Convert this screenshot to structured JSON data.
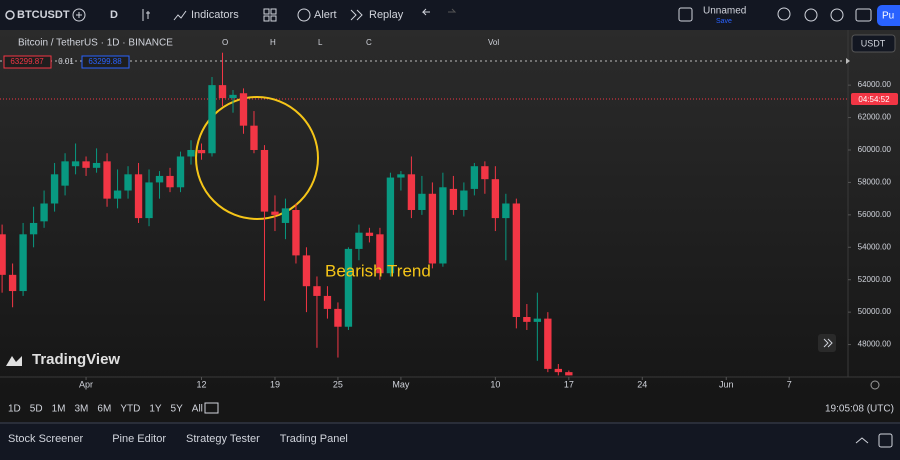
{
  "toolbar": {
    "symbol": "BTCUSDT",
    "interval": "D",
    "indicators": "Indicators",
    "alert": "Alert",
    "replay": "Replay",
    "layout_name": "Unnamed",
    "layout_status": "Save",
    "publish": "Pu"
  },
  "legend": {
    "title": "Bitcoin / TetherUS · 1D · BINANCE",
    "fields": [
      "O",
      "H",
      "L",
      "C",
      "Vol"
    ]
  },
  "price_boxes": [
    "63299.87",
    "0.01",
    "63299.88"
  ],
  "currency": "USDT",
  "countdown": "04:54:52",
  "watermark": "TradingView",
  "chart_data": {
    "type": "candlestick",
    "annotation": "Bearish Trend",
    "up_color": "#089981",
    "down_color": "#f23645",
    "x": [
      -8,
      -7,
      -6,
      -5,
      -4,
      -3,
      -2,
      -1,
      0,
      1,
      2,
      3,
      4,
      5,
      6,
      7,
      8,
      9,
      10,
      11,
      12,
      13,
      14,
      15,
      16,
      17,
      18,
      19,
      20,
      21,
      22,
      23,
      24,
      25,
      26,
      27,
      28,
      29,
      30,
      31,
      32,
      33,
      34,
      35,
      36,
      37,
      38,
      39,
      40,
      41,
      42,
      43,
      44,
      45,
      46
    ],
    "open": [
      54800,
      52300,
      51300,
      54800,
      55600,
      56700,
      57800,
      59000,
      59300,
      58900,
      59300,
      57000,
      57500,
      58500,
      55800,
      58000,
      58400,
      57700,
      59600,
      60000,
      59800,
      64000,
      63200,
      63500,
      61500,
      60000,
      56200,
      55500,
      56300,
      53500,
      51600,
      51000,
      50200,
      49100,
      53900,
      54900,
      54800,
      52400,
      58300,
      58500,
      56300,
      57300,
      53000,
      57600,
      56300,
      57600,
      59000,
      58200,
      55800,
      56700,
      49700,
      49400,
      49600,
      46500,
      46300
    ],
    "high": [
      55400,
      53000,
      55500,
      56500,
      57500,
      59200,
      59800,
      60400,
      59600,
      60100,
      59800,
      58800,
      59000,
      59200,
      58800,
      58700,
      58900,
      59900,
      60600,
      60400,
      64500,
      66000,
      63700,
      63800,
      62400,
      60300,
      57200,
      57000,
      56700,
      54000,
      52200,
      51600,
      50600,
      54000,
      55400,
      55200,
      55200,
      58600,
      58700,
      59600,
      58400,
      58000,
      58600,
      58400,
      58000,
      59200,
      59300,
      59000,
      57300,
      57000,
      50500,
      51200,
      50000,
      46800,
      46400
    ],
    "low": [
      51200,
      50300,
      51000,
      54000,
      55200,
      56200,
      57200,
      58500,
      58400,
      58600,
      56500,
      56400,
      57000,
      55500,
      55300,
      57000,
      57400,
      57400,
      59100,
      59400,
      59600,
      62700,
      62300,
      61000,
      59800,
      50700,
      55000,
      54500,
      53000,
      50000,
      47800,
      49600,
      47200,
      48900,
      53200,
      54300,
      52000,
      52200,
      57500,
      55800,
      56000,
      52700,
      52800,
      56000,
      55900,
      57200,
      57300,
      55000,
      53200,
      49000,
      48900,
      47000,
      46300,
      46100,
      46100
    ],
    "close": [
      52300,
      51300,
      54800,
      55500,
      56700,
      58500,
      59300,
      59300,
      58900,
      59200,
      57000,
      57500,
      58500,
      55800,
      58000,
      58400,
      57700,
      59600,
      60000,
      59800,
      64000,
      63200,
      63400,
      61500,
      60000,
      56200,
      56000,
      56400,
      53500,
      51600,
      51000,
      50200,
      49100,
      53900,
      54900,
      54700,
      52400,
      58300,
      58500,
      56300,
      57300,
      53000,
      57700,
      56300,
      57500,
      59000,
      58200,
      55800,
      56700,
      49700,
      49400,
      49600,
      46500,
      46300,
      46100
    ],
    "xlim": [
      -8.2,
      72.6
    ],
    "xticks": [
      {
        "value": 0,
        "label": "Apr"
      },
      {
        "value": 11,
        "label": "12"
      },
      {
        "value": 18,
        "label": "19"
      },
      {
        "value": 24,
        "label": "25"
      },
      {
        "value": 30,
        "label": "May"
      },
      {
        "value": 39,
        "label": "10"
      },
      {
        "value": 46,
        "label": "17"
      },
      {
        "value": 53,
        "label": "24"
      },
      {
        "value": 61,
        "label": "Jun"
      },
      {
        "value": 67,
        "label": "7"
      }
    ],
    "ylim": [
      46000,
      67400
    ],
    "yticks": [
      {
        "value": 48000,
        "label": "48000.00"
      },
      {
        "value": 50000,
        "label": "50000.00"
      },
      {
        "value": 52000,
        "label": "52000.00"
      },
      {
        "value": 54000,
        "label": "54000.00"
      },
      {
        "value": 56000,
        "label": "56000.00"
      },
      {
        "value": 58000,
        "label": "58000.00"
      },
      {
        "value": 60000,
        "label": "60000.00"
      },
      {
        "value": 62000,
        "label": "62000.00"
      },
      {
        "value": 64000,
        "label": "64000.00"
      }
    ],
    "grid": false
  },
  "timeframes": [
    "1D",
    "5D",
    "1M",
    "3M",
    "6M",
    "YTD",
    "1Y",
    "5Y",
    "All"
  ],
  "clock": "19:05:08 (UTC)",
  "bottom_tabs": [
    "Stock Screener",
    "Pine Editor",
    "Strategy Tester",
    "Trading Panel"
  ]
}
